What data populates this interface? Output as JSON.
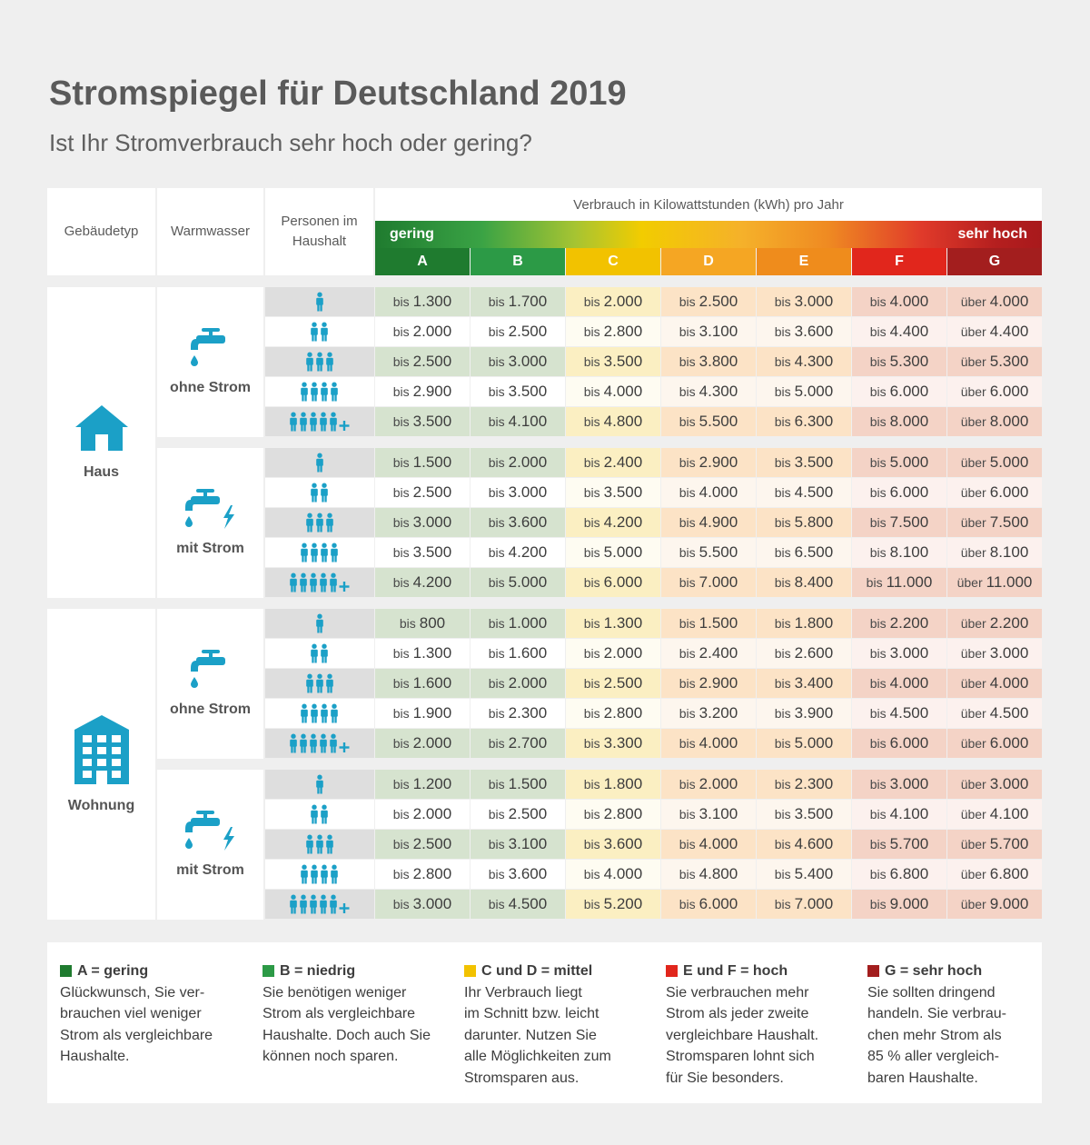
{
  "title": "Stromspiegel für Deutschland 2019",
  "subtitle": "Ist Ihr Stromverbrauch sehr hoch oder gering?",
  "header": {
    "gebaeudetyp": "Gebäudetyp",
    "warmwasser": "Warmwasser",
    "personen": "Personen im Haushalt",
    "unit": "Verbrauch in Kilowattstunden (kWh) pro Jahr",
    "low": "gering",
    "high": "sehr hoch",
    "classes": [
      "A",
      "B",
      "C",
      "D",
      "E",
      "F",
      "G"
    ]
  },
  "colors": {
    "A": "#1f7b2f",
    "B": "#2c9a46",
    "C": "#f2c200",
    "D": "#f5a623",
    "E": "#ef8c1c",
    "F": "#e1261c",
    "G": "#a31e1e",
    "icon": "#1ba0c7"
  },
  "sections": [
    {
      "building": "Haus",
      "building_icon": "house-icon",
      "groups": [
        {
          "water": "ohne Strom",
          "water_icon": "faucet-icon",
          "rows": [
            [
              [
                "bis",
                "1.300"
              ],
              [
                "bis",
                "1.700"
              ],
              [
                "bis",
                "2.000"
              ],
              [
                "bis",
                "2.500"
              ],
              [
                "bis",
                "3.000"
              ],
              [
                "bis",
                "4.000"
              ],
              [
                "über",
                "4.000"
              ]
            ],
            [
              [
                "bis",
                "2.000"
              ],
              [
                "bis",
                "2.500"
              ],
              [
                "bis",
                "2.800"
              ],
              [
                "bis",
                "3.100"
              ],
              [
                "bis",
                "3.600"
              ],
              [
                "bis",
                "4.400"
              ],
              [
                "über",
                "4.400"
              ]
            ],
            [
              [
                "bis",
                "2.500"
              ],
              [
                "bis",
                "3.000"
              ],
              [
                "bis",
                "3.500"
              ],
              [
                "bis",
                "3.800"
              ],
              [
                "bis",
                "4.300"
              ],
              [
                "bis",
                "5.300"
              ],
              [
                "über",
                "5.300"
              ]
            ],
            [
              [
                "bis",
                "2.900"
              ],
              [
                "bis",
                "3.500"
              ],
              [
                "bis",
                "4.000"
              ],
              [
                "bis",
                "4.300"
              ],
              [
                "bis",
                "5.000"
              ],
              [
                "bis",
                "6.000"
              ],
              [
                "über",
                "6.000"
              ]
            ],
            [
              [
                "bis",
                "3.500"
              ],
              [
                "bis",
                "4.100"
              ],
              [
                "bis",
                "4.800"
              ],
              [
                "bis",
                "5.500"
              ],
              [
                "bis",
                "6.300"
              ],
              [
                "bis",
                "8.000"
              ],
              [
                "über",
                "8.000"
              ]
            ]
          ]
        },
        {
          "water": "mit Strom",
          "water_icon": "faucet-electric-icon",
          "rows": [
            [
              [
                "bis",
                "1.500"
              ],
              [
                "bis",
                "2.000"
              ],
              [
                "bis",
                "2.400"
              ],
              [
                "bis",
                "2.900"
              ],
              [
                "bis",
                "3.500"
              ],
              [
                "bis",
                "5.000"
              ],
              [
                "über",
                "5.000"
              ]
            ],
            [
              [
                "bis",
                "2.500"
              ],
              [
                "bis",
                "3.000"
              ],
              [
                "bis",
                "3.500"
              ],
              [
                "bis",
                "4.000"
              ],
              [
                "bis",
                "4.500"
              ],
              [
                "bis",
                "6.000"
              ],
              [
                "über",
                "6.000"
              ]
            ],
            [
              [
                "bis",
                "3.000"
              ],
              [
                "bis",
                "3.600"
              ],
              [
                "bis",
                "4.200"
              ],
              [
                "bis",
                "4.900"
              ],
              [
                "bis",
                "5.800"
              ],
              [
                "bis",
                "7.500"
              ],
              [
                "über",
                "7.500"
              ]
            ],
            [
              [
                "bis",
                "3.500"
              ],
              [
                "bis",
                "4.200"
              ],
              [
                "bis",
                "5.000"
              ],
              [
                "bis",
                "5.500"
              ],
              [
                "bis",
                "6.500"
              ],
              [
                "bis",
                "8.100"
              ],
              [
                "über",
                "8.100"
              ]
            ],
            [
              [
                "bis",
                "4.200"
              ],
              [
                "bis",
                "5.000"
              ],
              [
                "bis",
                "6.000"
              ],
              [
                "bis",
                "7.000"
              ],
              [
                "bis",
                "8.400"
              ],
              [
                "bis",
                "11.000"
              ],
              [
                "über",
                "11.000"
              ]
            ]
          ]
        }
      ]
    },
    {
      "building": "Wohnung",
      "building_icon": "apartment-building-icon",
      "groups": [
        {
          "water": "ohne Strom",
          "water_icon": "faucet-icon",
          "rows": [
            [
              [
                "bis",
                "800"
              ],
              [
                "bis",
                "1.000"
              ],
              [
                "bis",
                "1.300"
              ],
              [
                "bis",
                "1.500"
              ],
              [
                "bis",
                "1.800"
              ],
              [
                "bis",
                "2.200"
              ],
              [
                "über",
                "2.200"
              ]
            ],
            [
              [
                "bis",
                "1.300"
              ],
              [
                "bis",
                "1.600"
              ],
              [
                "bis",
                "2.000"
              ],
              [
                "bis",
                "2.400"
              ],
              [
                "bis",
                "2.600"
              ],
              [
                "bis",
                "3.000"
              ],
              [
                "über",
                "3.000"
              ]
            ],
            [
              [
                "bis",
                "1.600"
              ],
              [
                "bis",
                "2.000"
              ],
              [
                "bis",
                "2.500"
              ],
              [
                "bis",
                "2.900"
              ],
              [
                "bis",
                "3.400"
              ],
              [
                "bis",
                "4.000"
              ],
              [
                "über",
                "4.000"
              ]
            ],
            [
              [
                "bis",
                "1.900"
              ],
              [
                "bis",
                "2.300"
              ],
              [
                "bis",
                "2.800"
              ],
              [
                "bis",
                "3.200"
              ],
              [
                "bis",
                "3.900"
              ],
              [
                "bis",
                "4.500"
              ],
              [
                "über",
                "4.500"
              ]
            ],
            [
              [
                "bis",
                "2.000"
              ],
              [
                "bis",
                "2.700"
              ],
              [
                "bis",
                "3.300"
              ],
              [
                "bis",
                "4.000"
              ],
              [
                "bis",
                "5.000"
              ],
              [
                "bis",
                "6.000"
              ],
              [
                "über",
                "6.000"
              ]
            ]
          ]
        },
        {
          "water": "mit Strom",
          "water_icon": "faucet-electric-icon",
          "rows": [
            [
              [
                "bis",
                "1.200"
              ],
              [
                "bis",
                "1.500"
              ],
              [
                "bis",
                "1.800"
              ],
              [
                "bis",
                "2.000"
              ],
              [
                "bis",
                "2.300"
              ],
              [
                "bis",
                "3.000"
              ],
              [
                "über",
                "3.000"
              ]
            ],
            [
              [
                "bis",
                "2.000"
              ],
              [
                "bis",
                "2.500"
              ],
              [
                "bis",
                "2.800"
              ],
              [
                "bis",
                "3.100"
              ],
              [
                "bis",
                "3.500"
              ],
              [
                "bis",
                "4.100"
              ],
              [
                "über",
                "4.100"
              ]
            ],
            [
              [
                "bis",
                "2.500"
              ],
              [
                "bis",
                "3.100"
              ],
              [
                "bis",
                "3.600"
              ],
              [
                "bis",
                "4.000"
              ],
              [
                "bis",
                "4.600"
              ],
              [
                "bis",
                "5.700"
              ],
              [
                "über",
                "5.700"
              ]
            ],
            [
              [
                "bis",
                "2.800"
              ],
              [
                "bis",
                "3.600"
              ],
              [
                "bis",
                "4.000"
              ],
              [
                "bis",
                "4.800"
              ],
              [
                "bis",
                "5.400"
              ],
              [
                "bis",
                "6.800"
              ],
              [
                "über",
                "6.800"
              ]
            ],
            [
              [
                "bis",
                "3.000"
              ],
              [
                "bis",
                "4.500"
              ],
              [
                "bis",
                "5.200"
              ],
              [
                "bis",
                "6.000"
              ],
              [
                "bis",
                "7.000"
              ],
              [
                "bis",
                "9.000"
              ],
              [
                "über",
                "9.000"
              ]
            ]
          ]
        }
      ]
    }
  ],
  "persons_icons": [
    "1-person-icon",
    "2-persons-icon",
    "3-persons-icon",
    "4-persons-icon",
    "5-plus-persons-icon"
  ],
  "legend": [
    {
      "title": "A = gering",
      "color": "#1f7b2f",
      "text": "Glückwunsch, Sie ver-\nbrauchen viel weniger\nStrom als vergleichbare\nHaushalte."
    },
    {
      "title": "B = niedrig",
      "color": "#2c9a46",
      "text": "Sie benötigen weniger\nStrom als vergleichbare\nHaushalte. Doch auch Sie\nkönnen noch sparen."
    },
    {
      "title": "C und D = mittel",
      "color": "#f2c200",
      "text": "Ihr Verbrauch liegt\nim Schnitt bzw. leicht\ndarunter. Nutzen Sie\nalle Möglichkeiten zum\nStromsparen aus."
    },
    {
      "title": "E und F = hoch",
      "color": "#e1261c",
      "text": "Sie verbrauchen mehr\nStrom als jeder zweite\nvergleichbare Haushalt.\nStromsparen lohnt sich\nfür Sie besonders."
    },
    {
      "title": "G = sehr hoch",
      "color": "#a31e1e",
      "text": "Sie sollten dringend\nhandeln. Sie verbrau-\nchen mehr Strom als\n85 % aller vergleich-\nbaren Haushalte."
    }
  ]
}
